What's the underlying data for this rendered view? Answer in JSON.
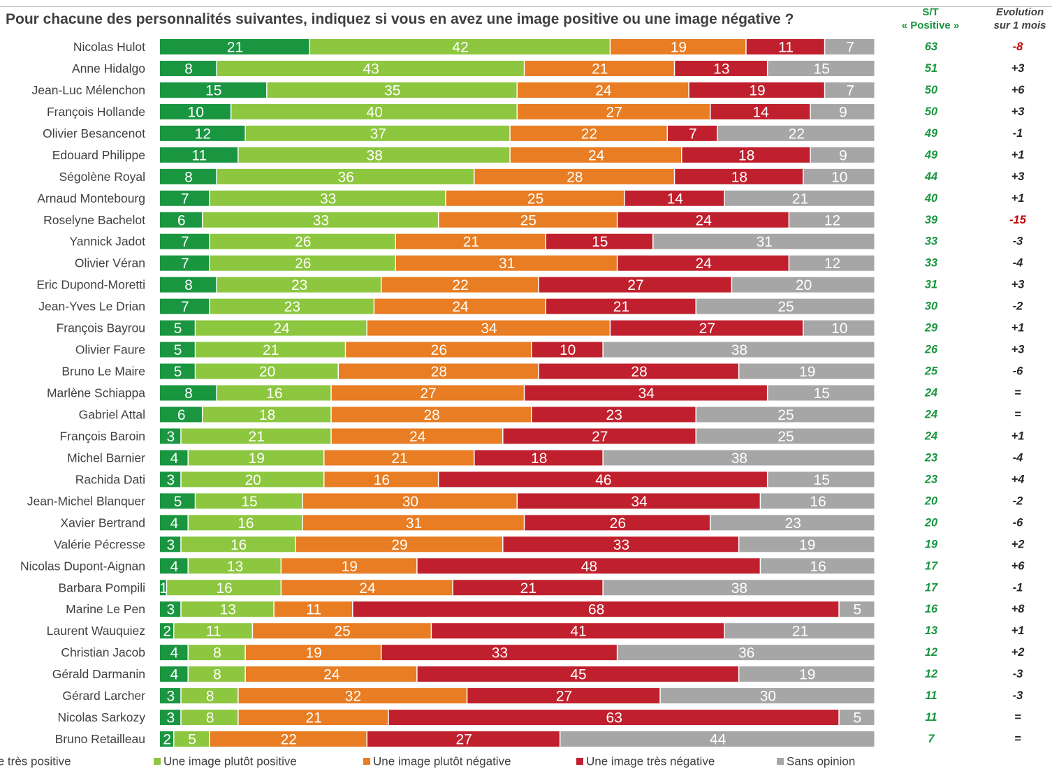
{
  "title": "Pour chacune des personnalités suivantes, indiquez si vous en avez une image positive ou une image négative ?",
  "columns": {
    "st_line1": "S/T",
    "st_line2": "« Positive »",
    "evo_line1": "Evolution",
    "evo_line2": "sur 1 mois"
  },
  "colors": {
    "tres_positive": "#1a9641",
    "plutot_positive": "#8dc63f",
    "plutot_negative": "#e87d23",
    "tres_negative": "#c0202e",
    "sans_opinion": "#a6a6a6",
    "st_text": "#1a9641",
    "evo_negative_highlight": "#c00000",
    "evo_text": "#262626"
  },
  "chart_data": {
    "type": "bar",
    "orientation": "horizontal",
    "stacked": true,
    "unit": "%",
    "categories": [
      "Nicolas Hulot",
      "Anne Hidalgo",
      "Jean-Luc Mélenchon",
      "François Hollande",
      "Olivier Besancenot",
      "Edouard Philippe",
      "Ségolène Royal",
      "Arnaud Montebourg",
      "Roselyne Bachelot",
      "Yannick Jadot",
      "Olivier Véran",
      "Eric Dupond-Moretti",
      "Jean-Yves Le Drian",
      "François Bayrou",
      "Olivier Faure",
      "Bruno Le Maire",
      "Marlène Schiappa",
      "Gabriel Attal",
      "François Baroin",
      "Michel Barnier",
      "Rachida Dati",
      "Jean-Michel Blanquer",
      "Xavier Bertrand",
      "Valérie Pécresse",
      "Nicolas Dupont-Aignan",
      "Barbara Pompili",
      "Marine Le Pen",
      "Laurent Wauquiez",
      "Christian Jacob",
      "Gérald Darmanin",
      "Gérard Larcher",
      "Nicolas Sarkozy",
      "Bruno Retailleau"
    ],
    "series": [
      {
        "name": "Une image très positive",
        "values": [
          21,
          8,
          15,
          10,
          12,
          11,
          8,
          7,
          6,
          7,
          7,
          8,
          7,
          5,
          5,
          5,
          8,
          6,
          3,
          4,
          3,
          5,
          4,
          3,
          4,
          1,
          3,
          2,
          4,
          4,
          3,
          3,
          2
        ]
      },
      {
        "name": "Une image plutôt positive",
        "values": [
          42,
          43,
          35,
          40,
          37,
          38,
          36,
          33,
          33,
          26,
          26,
          23,
          23,
          24,
          21,
          20,
          16,
          18,
          21,
          19,
          20,
          15,
          16,
          16,
          13,
          16,
          13,
          11,
          8,
          8,
          8,
          8,
          5
        ]
      },
      {
        "name": "Une image plutôt négative",
        "values": [
          19,
          21,
          24,
          27,
          22,
          24,
          28,
          25,
          25,
          21,
          31,
          22,
          24,
          34,
          26,
          28,
          27,
          28,
          24,
          21,
          16,
          30,
          31,
          29,
          19,
          24,
          11,
          25,
          19,
          24,
          32,
          21,
          22
        ]
      },
      {
        "name": "Une image très négative",
        "values": [
          11,
          13,
          19,
          14,
          7,
          18,
          18,
          14,
          24,
          15,
          24,
          27,
          21,
          27,
          10,
          28,
          34,
          23,
          27,
          18,
          46,
          34,
          26,
          33,
          48,
          21,
          68,
          41,
          33,
          45,
          27,
          63,
          27
        ]
      },
      {
        "name": "Sans opinion",
        "values": [
          7,
          15,
          7,
          9,
          22,
          9,
          10,
          21,
          12,
          31,
          12,
          20,
          25,
          10,
          38,
          19,
          15,
          25,
          25,
          38,
          15,
          16,
          23,
          19,
          16,
          38,
          5,
          21,
          36,
          19,
          30,
          5,
          44
        ]
      }
    ],
    "st_positive": [
      "63",
      "51",
      "50",
      "50",
      "49",
      "49",
      "44",
      "40",
      "39",
      "33",
      "33",
      "31",
      "30",
      "29",
      "26",
      "25",
      "24",
      "24",
      "24",
      "23",
      "23",
      "20",
      "20",
      "19",
      "17",
      "17",
      "16",
      "13",
      "12",
      "12",
      "11",
      "11",
      "7"
    ],
    "evolution": [
      "-8",
      "+3",
      "+6",
      "+3",
      "-1",
      "+1",
      "+3",
      "+1",
      "-15",
      "-3",
      "-4",
      "+3",
      "-2",
      "+1",
      "+3",
      "-6",
      "=",
      "=",
      "+1",
      "-4",
      "+4",
      "-2",
      "-6",
      "+2",
      "+6",
      "-1",
      "+8",
      "+1",
      "+2",
      "-3",
      "-3",
      "=",
      "="
    ],
    "evolution_highlight_red": [
      0,
      8
    ],
    "legend": {
      "position": "bottom",
      "labels": [
        "Une image très positive",
        "Une image plutôt positive",
        "Une image plutôt négative",
        "Une image très négative",
        "Sans opinion"
      ]
    },
    "data_labels": true,
    "grid": false
  }
}
